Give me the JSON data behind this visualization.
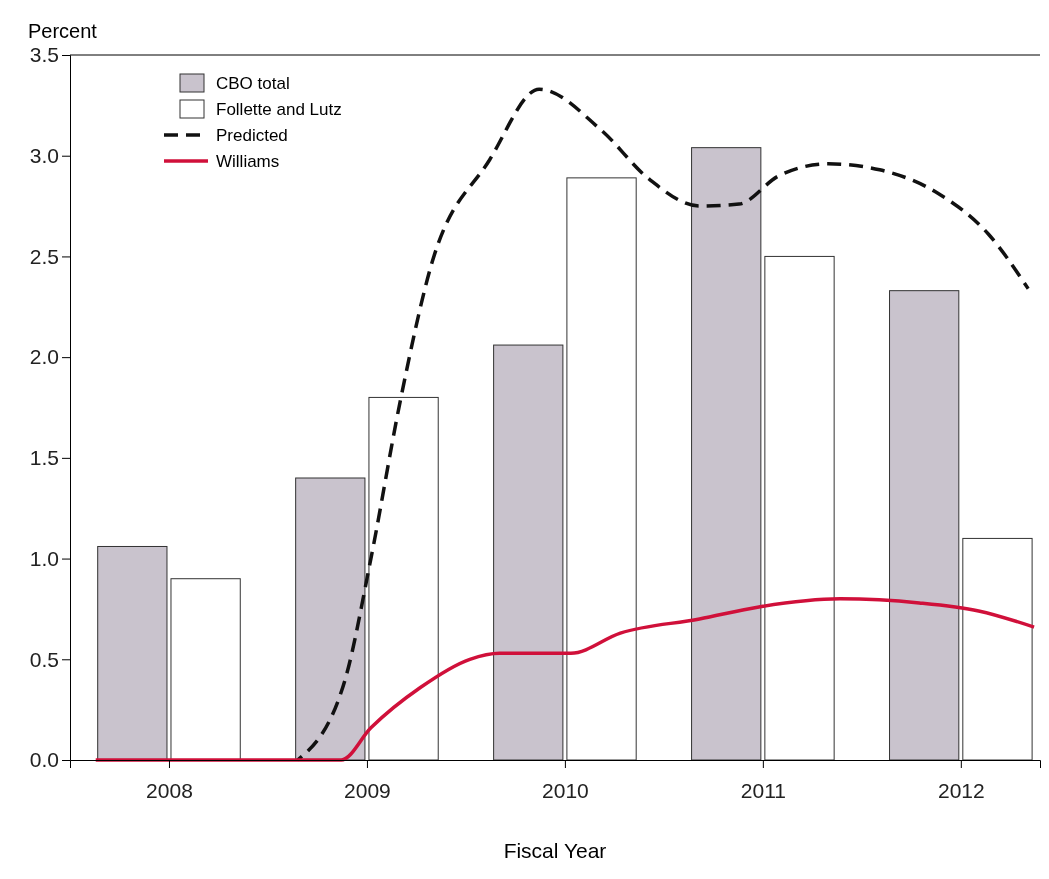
{
  "chart_data": {
    "type": "bar",
    "ylabel": "Percent",
    "xlabel": "Fiscal Year",
    "x": [
      2008,
      2009,
      2010,
      2011,
      2012
    ],
    "xlim": [
      2007.5,
      2012.4
    ],
    "xticks": [
      {
        "value": 2008,
        "label": "2008"
      },
      {
        "value": 2009,
        "label": "2009"
      },
      {
        "value": 2010,
        "label": "2010"
      },
      {
        "value": 2011,
        "label": "2011"
      },
      {
        "value": 2012,
        "label": "2012"
      }
    ],
    "ylim": [
      0,
      3.5
    ],
    "yticks": [
      {
        "value": 0,
        "label": "0.0"
      },
      {
        "value": 0.5,
        "label": "0.5"
      },
      {
        "value": 1,
        "label": "1.0"
      },
      {
        "value": 1.5,
        "label": "1.5"
      },
      {
        "value": 2,
        "label": "2.0"
      },
      {
        "value": 2.5,
        "label": "2.5"
      },
      {
        "value": 3,
        "label": "3.0"
      },
      {
        "value": 3.5,
        "label": "3.5"
      }
    ],
    "grid": false,
    "legend": "top left",
    "series": [
      {
        "name": "CBO total",
        "color": "#c9c3cd",
        "values": [
          1.06,
          1.4,
          2.06,
          3.04,
          2.33
        ]
      },
      {
        "name": "Follette and Lutz",
        "color": "#ffffff",
        "values": [
          0.9,
          1.8,
          2.89,
          2.5,
          1.1
        ]
      },
      {
        "name": "Predicted",
        "type": "line",
        "line_style": "dashed",
        "color": "#111111",
        "x": [
          2008.65,
          2008.89,
          2009.02,
          2009.17,
          2009.32,
          2009.62,
          2009.87,
          2010.18,
          2010.43,
          2010.68,
          2010.88,
          2011.08,
          2011.33,
          2011.59,
          2011.89,
          2012.14,
          2012.34
        ],
        "values": [
          0,
          0.4,
          1.0,
          1.79,
          2.44,
          2.98,
          3.33,
          3.13,
          2.88,
          2.75,
          2.76,
          2.9,
          2.96,
          2.93,
          2.81,
          2.61,
          2.34
        ]
      },
      {
        "name": "Williams",
        "type": "line",
        "line_style": "solid",
        "color": "#d0103a",
        "x": [
          2007.63,
          2008.87,
          2009.02,
          2009.27,
          2009.52,
          2009.67,
          2010.03,
          2010.28,
          2010.68,
          2010.98,
          2011.39,
          2011.79,
          2012.09,
          2012.37
        ],
        "values": [
          0,
          0,
          0.16,
          0.36,
          0.5,
          0.53,
          0.53,
          0.63,
          0.7,
          0.76,
          0.8,
          0.78,
          0.74,
          0.66
        ]
      }
    ]
  }
}
